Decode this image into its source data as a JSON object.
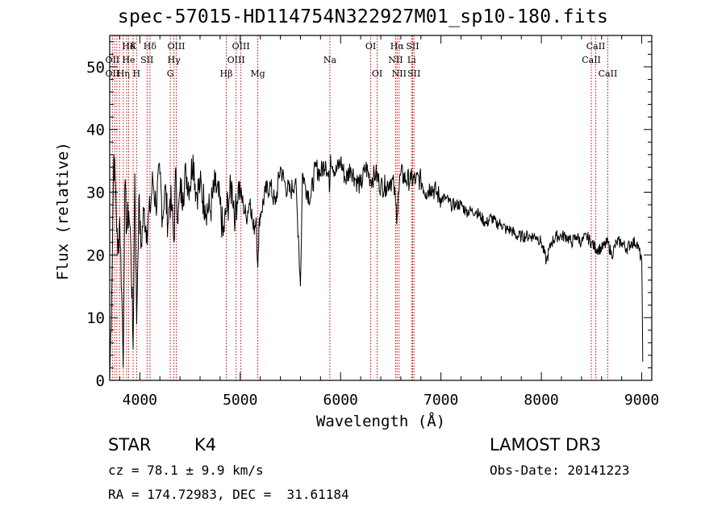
{
  "chart_data": {
    "type": "line",
    "title": "spec-57015-HD114754N322927M01_sp10-180.fits",
    "xlabel": "Wavelength (Å)",
    "ylabel": "Flux (relative)",
    "xlim": [
      3700,
      9100
    ],
    "ylim": [
      0,
      55
    ],
    "xticks": [
      4000,
      5000,
      6000,
      7000,
      8000,
      9000
    ],
    "yticks": [
      0,
      10,
      20,
      30,
      40,
      50
    ],
    "series": [
      {
        "name": "flux",
        "x": [
          3700,
          3720,
          3740,
          3760,
          3780,
          3800,
          3820,
          3835,
          3850,
          3870,
          3890,
          3910,
          3933,
          3950,
          3968,
          3990,
          4010,
          4040,
          4070,
          4101,
          4130,
          4160,
          4200,
          4226,
          4250,
          4280,
          4300,
          4320,
          4340,
          4360,
          4380,
          4400,
          4430,
          4460,
          4500,
          4530,
          4560,
          4600,
          4650,
          4700,
          4750,
          4800,
          4830,
          4861,
          4890,
          4920,
          4950,
          4980,
          5000,
          5030,
          5060,
          5100,
          5130,
          5160,
          5175,
          5183,
          5190,
          5210,
          5250,
          5300,
          5350,
          5400,
          5450,
          5500,
          5550,
          5580,
          5600,
          5620,
          5650,
          5700,
          5750,
          5800,
          5850,
          5893,
          5900,
          5950,
          6000,
          6050,
          6100,
          6150,
          6200,
          6250,
          6300,
          6350,
          6400,
          6450,
          6500,
          6530,
          6550,
          6563,
          6575,
          6600,
          6650,
          6700,
          6750,
          6800,
          6850,
          6900,
          6950,
          7000,
          7050,
          7100,
          7150,
          7200,
          7250,
          7300,
          7350,
          7400,
          7450,
          7500,
          7550,
          7600,
          7650,
          7700,
          7750,
          7800,
          7850,
          7900,
          7950,
          8000,
          8050,
          8100,
          8150,
          8200,
          8250,
          8300,
          8350,
          8400,
          8450,
          8498,
          8542,
          8600,
          8662,
          8700,
          8750,
          8800,
          8850,
          8900,
          8950,
          9000,
          9010
        ],
        "values": [
          0,
          14,
          36,
          30,
          20,
          26,
          14,
          2,
          31,
          24,
          27,
          22,
          5,
          33,
          9,
          29,
          21,
          27,
          24,
          27,
          32,
          28,
          33,
          26,
          31,
          25,
          29,
          27,
          22,
          34,
          25,
          30,
          30,
          33,
          31,
          36,
          30,
          31,
          28,
          27,
          31,
          28,
          23,
          27,
          29,
          31,
          26,
          31,
          30,
          28,
          26,
          29,
          24,
          26,
          18,
          21,
          26,
          27,
          30,
          31,
          28,
          34,
          31,
          30,
          32,
          23,
          15,
          33,
          31,
          29,
          34,
          33,
          35,
          31,
          36,
          33,
          35,
          32,
          34,
          32,
          31,
          34,
          32,
          33,
          31,
          31,
          32,
          31,
          28,
          26,
          30,
          33,
          32,
          32,
          32,
          32,
          30,
          31,
          30,
          29,
          29,
          28,
          28,
          28,
          27,
          27,
          27,
          26,
          25,
          26,
          25,
          25,
          24,
          24,
          23,
          23,
          23,
          23,
          23,
          22,
          19,
          22,
          23,
          23,
          23,
          22,
          23,
          22,
          23,
          22,
          21,
          21,
          22,
          20,
          22,
          22,
          21,
          22,
          22,
          19,
          3
        ],
        "color": "#000000"
      }
    ],
    "line_labels": [
      {
        "label": "Hδ",
        "wavelength": 3889
      },
      {
        "label": "K",
        "wavelength": 3933
      },
      {
        "label": "Hδ",
        "wavelength": 4101
      },
      {
        "label": "OIII",
        "wavelength": 4363
      },
      {
        "label": "OIII",
        "wavelength": 5007
      },
      {
        "label": "OI",
        "wavelength": 6300
      },
      {
        "label": "Hα",
        "wavelength": 6563
      },
      {
        "label": "SII",
        "wavelength": 6717
      },
      {
        "label": "CaII",
        "wavelength": 8542
      },
      {
        "label": "OII",
        "wavelength": 3727
      },
      {
        "label": "He",
        "wavelength": 3889
      },
      {
        "label": "SII",
        "wavelength": 4072
      },
      {
        "label": "Hγ",
        "wavelength": 4340
      },
      {
        "label": "OIII",
        "wavelength": 4959
      },
      {
        "label": "Na",
        "wavelength": 5893
      },
      {
        "label": "NII",
        "wavelength": 6548
      },
      {
        "label": "Li",
        "wavelength": 6708
      },
      {
        "label": "CaII",
        "wavelength": 8498
      },
      {
        "label": "OII",
        "wavelength": 3727
      },
      {
        "label": "Hη",
        "wavelength": 3835
      },
      {
        "label": "H",
        "wavelength": 3968
      },
      {
        "label": "G",
        "wavelength": 4304
      },
      {
        "label": "Hβ",
        "wavelength": 4861
      },
      {
        "label": "Mg",
        "wavelength": 5175
      },
      {
        "label": "OI",
        "wavelength": 6364
      },
      {
        "label": "NII",
        "wavelength": 6583
      },
      {
        "label": "SII",
        "wavelength": 6731
      },
      {
        "label": "CaII",
        "wavelength": 8662
      }
    ],
    "marker_lines": [
      3727,
      3750,
      3771,
      3798,
      3835,
      3869,
      3889,
      3933,
      3968,
      4072,
      4101,
      4304,
      4340,
      4363,
      4861,
      4959,
      5007,
      5175,
      5893,
      6300,
      6364,
      6548,
      6563,
      6583,
      6708,
      6717,
      6731,
      8498,
      8542,
      8662
    ],
    "marker_color": "#cc0000"
  },
  "info": {
    "class_label": "STAR",
    "subclass": "K4",
    "survey": "LAMOST DR3",
    "cz": "cz = 78.1 ± 9.9 km/s",
    "obs_date": "Obs-Date: 20141223",
    "coords": "RA = 174.72983, DEC =  31.61184"
  }
}
